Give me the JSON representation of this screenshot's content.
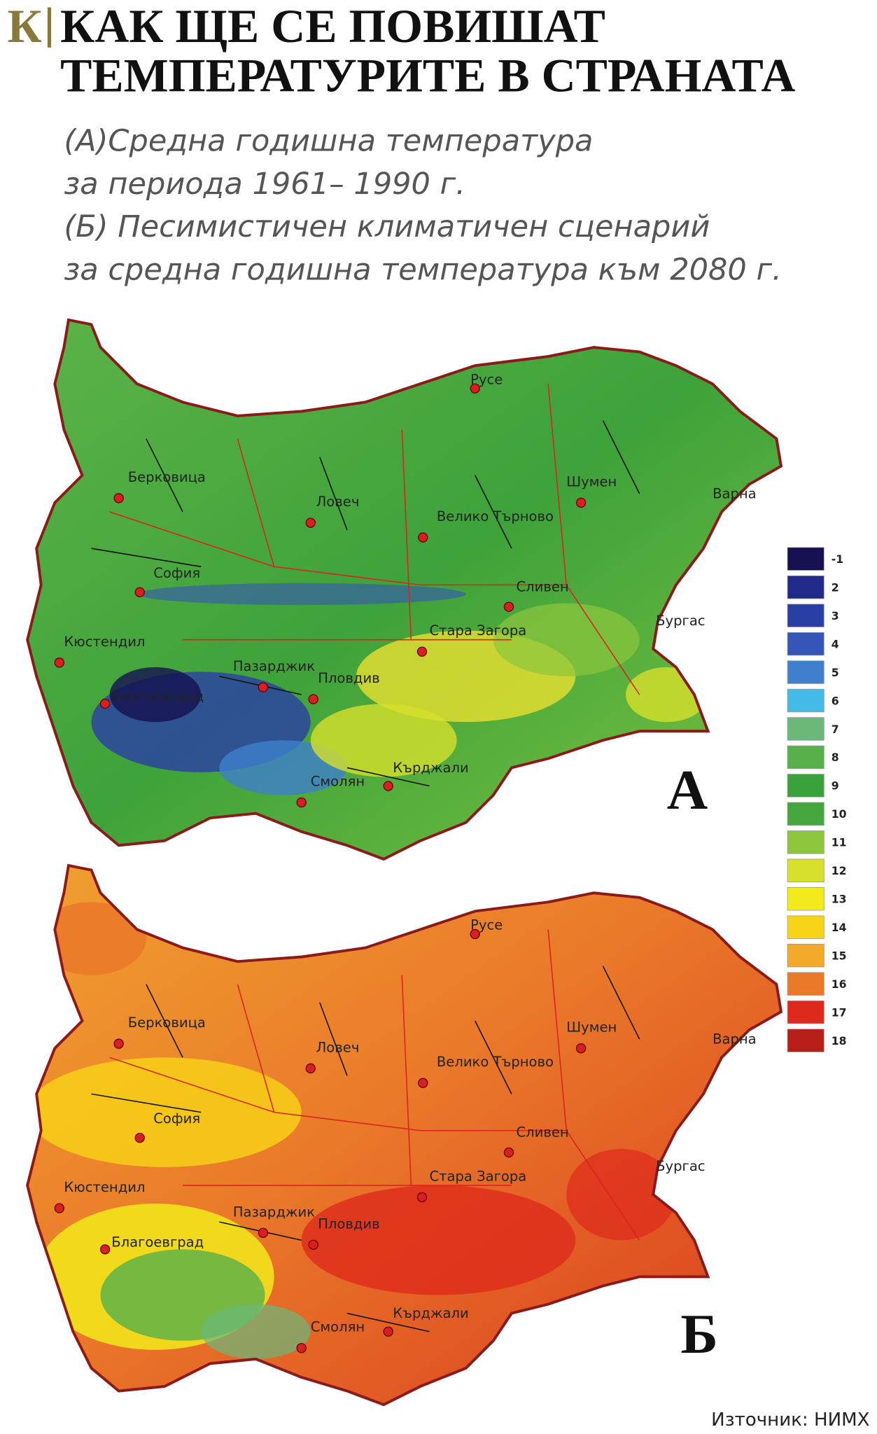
{
  "header": {
    "logo": "К",
    "title": [
      "КАК ЩЕ СЕ ПОВИШАТ",
      "ТЕМПЕРАТУРИТЕ В СТРАНАТА"
    ]
  },
  "subtitle": [
    "(А)Средна годишна температура",
    "за периода 1961– 1990 г.",
    "(Б) Песимистичен климатичен сценарий",
    "за средна годишна температура към 2080 г."
  ],
  "maps": [
    {
      "letter": "А"
    },
    {
      "letter": "Б"
    }
  ],
  "cities": [
    "Русе",
    "Берковица",
    "Ловеч",
    "Велико Търново",
    "Шумен",
    "Варна",
    "София",
    "Сливен",
    "Бургас",
    "Стара Загора",
    "Кюстендил",
    "Пазарджик",
    "Пловдив",
    "Благоевград",
    "Кърджали",
    "Смолян"
  ],
  "legend": [
    {
      "label": "-1",
      "color": "#15104f"
    },
    {
      "label": "2",
      "color": "#1f2a8a"
    },
    {
      "label": "3",
      "color": "#2a3fa6"
    },
    {
      "label": "4",
      "color": "#3555b8"
    },
    {
      "label": "5",
      "color": "#3f7fcc"
    },
    {
      "label": "6",
      "color": "#43b9e6"
    },
    {
      "label": "7",
      "color": "#6bb87a"
    },
    {
      "label": "8",
      "color": "#58b04a"
    },
    {
      "label": "9",
      "color": "#3aa23a"
    },
    {
      "label": "10",
      "color": "#44a63c"
    },
    {
      "label": "11",
      "color": "#8cc63c"
    },
    {
      "label": "12",
      "color": "#d6e02c"
    },
    {
      "label": "13",
      "color": "#f2ea1a"
    },
    {
      "label": "14",
      "color": "#f7d417"
    },
    {
      "label": "15",
      "color": "#f3a92a"
    },
    {
      "label": "16",
      "color": "#ea7a2a"
    },
    {
      "label": "17",
      "color": "#de2a1c"
    },
    {
      "label": "18",
      "color": "#b81e18"
    }
  ],
  "source": "Източник: НИМХ"
}
